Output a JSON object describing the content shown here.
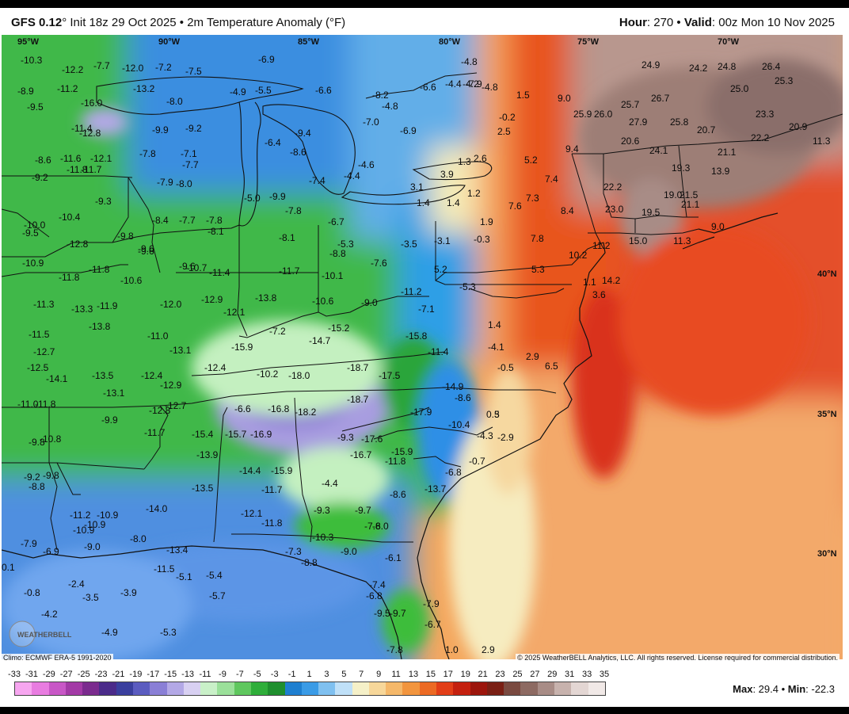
{
  "header": {
    "model": "GFS 0.12",
    "model_suffix": "°",
    "init": " Init 18z 29 Oct 2025 • 2m Temperature Anomaly (°F)",
    "hour_label": "Hour",
    "hour_value": ": 270 • ",
    "valid_label": "Valid",
    "valid_value": ": 00z Mon 10 Nov 2025"
  },
  "gridlines": {
    "lon": [
      "95°W",
      "90°W",
      "85°W",
      "80°W",
      "75°W",
      "70°W"
    ],
    "lat": [
      "40°N",
      "35°N",
      "30°N"
    ]
  },
  "footer": {
    "climo": "Climo: ECMWF ERA-5 1991-2020",
    "copyright": "© 2025 WeatherBELL Analytics, LLC. All rights reserved. License required for commercial distribution.",
    "max_label": "Max",
    "max_value": ": 29.4 • ",
    "min_label": "Min",
    "min_value": ": -22.3",
    "logo_text": "WEATHERBELL"
  },
  "colorbar": {
    "ticks": [
      "-33",
      "-31",
      "-29",
      "-27",
      "-25",
      "-23",
      "-21",
      "-19",
      "-17",
      "-15",
      "-13",
      "-11",
      "-9",
      "-7",
      "-5",
      "-3",
      "-1",
      "1",
      "3",
      "5",
      "7",
      "9",
      "11",
      "13",
      "15",
      "17",
      "19",
      "21",
      "23",
      "25",
      "27",
      "29",
      "31",
      "33",
      "35"
    ],
    "colors": [
      "#f7a6f0",
      "#e87ce0",
      "#c857c6",
      "#a33aa6",
      "#7b2b8e",
      "#4b2b8a",
      "#3a3f9e",
      "#5b5cc0",
      "#8a7fd6",
      "#b3a8e6",
      "#d8d0f2",
      "#c9f0c8",
      "#9be09a",
      "#5fc75e",
      "#2fae3a",
      "#1f8f2e",
      "#1e7fd0",
      "#3a9be6",
      "#7fc0f0",
      "#bfe0f8",
      "#f5f0c8",
      "#f7d79a",
      "#f5b86a",
      "#f2953e",
      "#ec6a24",
      "#e23e18",
      "#c4200f",
      "#9c150c",
      "#7a1f14",
      "#7a4a40",
      "#8d6a62",
      "#a88c86",
      "#c7b2ad",
      "#e3d6d3",
      "#f1e9e7"
    ]
  },
  "values": [
    "-10.3",
    "-12.2",
    "-7.7",
    "-12.0",
    "-8.9",
    "-11.2",
    "-13.2",
    "-9.5",
    "-16.0",
    "-11.4",
    "-12.8",
    "-8.6",
    "-11.6",
    "-12.1",
    "-11.8",
    "-11.7",
    "-9.2",
    "-9.3",
    "-10.4",
    "-10.0",
    "-9.5",
    "-9.8",
    "-12.8",
    "-10.9",
    "-9.6",
    "-11.8",
    "-11.8",
    "-10.6",
    "-11.3",
    "-13.3",
    "-11.9",
    "-13.8",
    "-11.5",
    "-12.7",
    "-12.5",
    "-14.1",
    "-13.5",
    "-11.0",
    "-11.8",
    "-13.1",
    "-9.9",
    "-9.8",
    "-10.8",
    "-9.2",
    "-9.8",
    "-8.8",
    "-11.2",
    "-10.9",
    "-10.9",
    "-10.9",
    "-9.0",
    "-7.9",
    "-6.9",
    "-8.0",
    "-2.4",
    "-3.5",
    "-3.9",
    "-0.8",
    "-4.2",
    "-4.9",
    "-5.3",
    "-6.9",
    "-7.5",
    "-7.2",
    "-4.9",
    "-5.5",
    "-8.0",
    "-9.9",
    "-9.2",
    "-7.8",
    "-7.1",
    "-7.7",
    "-7.9",
    "-8.0",
    "-8.4",
    "-7.7",
    "-7.8",
    "-8.1",
    "-9.6",
    "-9.6",
    "-10.7",
    "-11.4",
    "-12.0",
    "-12.9",
    "-12.1",
    "-11.0",
    "-13.1",
    "-12.4",
    "-12.4",
    "-12.9",
    "-12.8",
    "-12.7",
    "-11.7",
    "-15.4",
    "-15.7",
    "-16.9",
    "-13.9",
    "-13.5",
    "-14.4",
    "-15.9",
    "-11.7",
    "-14.0",
    "-12.1",
    "-11.8",
    "-13.4",
    "-11.5",
    "-5.1",
    "-5.4",
    "-5.7",
    "-6.6",
    "-8.2",
    "-6.6",
    "-4.4",
    "-4.8",
    "-7.9",
    "-6.9",
    "-4.8",
    "-7.0",
    "-6.4",
    "-9.4",
    "-8.6",
    "-4.6",
    "-4.4",
    "-7.4",
    "-5.0",
    "-9.9",
    "-7.8",
    "-6.7",
    "-8.1",
    "-5.3",
    "-8.8",
    "-3.5",
    "-7.6",
    "-11.7",
    "-10.1",
    "-13.8",
    "-10.6",
    "-9.0",
    "-11.2",
    "-7.1",
    "-7.2",
    "-15.2",
    "-14.7",
    "-15.9",
    "-15.8",
    "-11.4",
    "-10.2",
    "-18.0",
    "-18.7",
    "-17.5",
    "-14.9",
    "-8.6",
    "-6.6",
    "-16.8",
    "-18.2",
    "-18.7",
    "-17.9",
    "-9.3",
    "-17.6",
    "-16.7",
    "-15.9",
    "-11.8",
    "-10.4",
    "-4.3",
    "-2.9",
    "-0.7",
    "-6.8",
    "-4.4",
    "-13.7",
    "-8.6",
    "-9.3",
    "-9.7",
    "-7.6",
    "-8.0",
    "-10.3",
    "-7.3",
    "-8.8",
    "-9.0",
    "-6.1",
    "-7.4",
    "-6.8",
    "-9.5",
    "-9.7",
    "-7.9",
    "-6.7",
    "-7.8",
    "-4.8",
    "-4.2",
    "1.5",
    "-0.2",
    "2.5",
    "9.0",
    "1.3",
    "2.6",
    "3.9",
    "3.1",
    "1.4",
    "1.4",
    "1.2",
    "1.9",
    "-0.3",
    "-3.1",
    "5.2",
    "-5.3",
    "7.6",
    "7.3",
    "8.4",
    "7.8",
    "5.3",
    "5.2",
    "7.4",
    "9.4",
    "11.2",
    "10.2",
    "14.2",
    "1.1",
    "3.6",
    "1.4",
    "-4.1",
    "2.9",
    "-0.5",
    "6.5",
    "0.5",
    "3",
    "2.9",
    "1.0",
    "24.9",
    "24.2",
    "24.8",
    "26.4",
    "25.3",
    "25.0",
    "25.9",
    "26.0",
    "25.7",
    "26.7",
    "27.9",
    "25.8",
    "23.3",
    "20.6",
    "20.7",
    "22.2",
    "20.9",
    "11.3",
    "24.1",
    "21.1",
    "19.3",
    "13.9",
    "22.2",
    "19.0",
    "21.5",
    "21.1",
    "23.0",
    "19.5",
    "15.0",
    "11.3",
    "9.0",
    "0.1"
  ]
}
